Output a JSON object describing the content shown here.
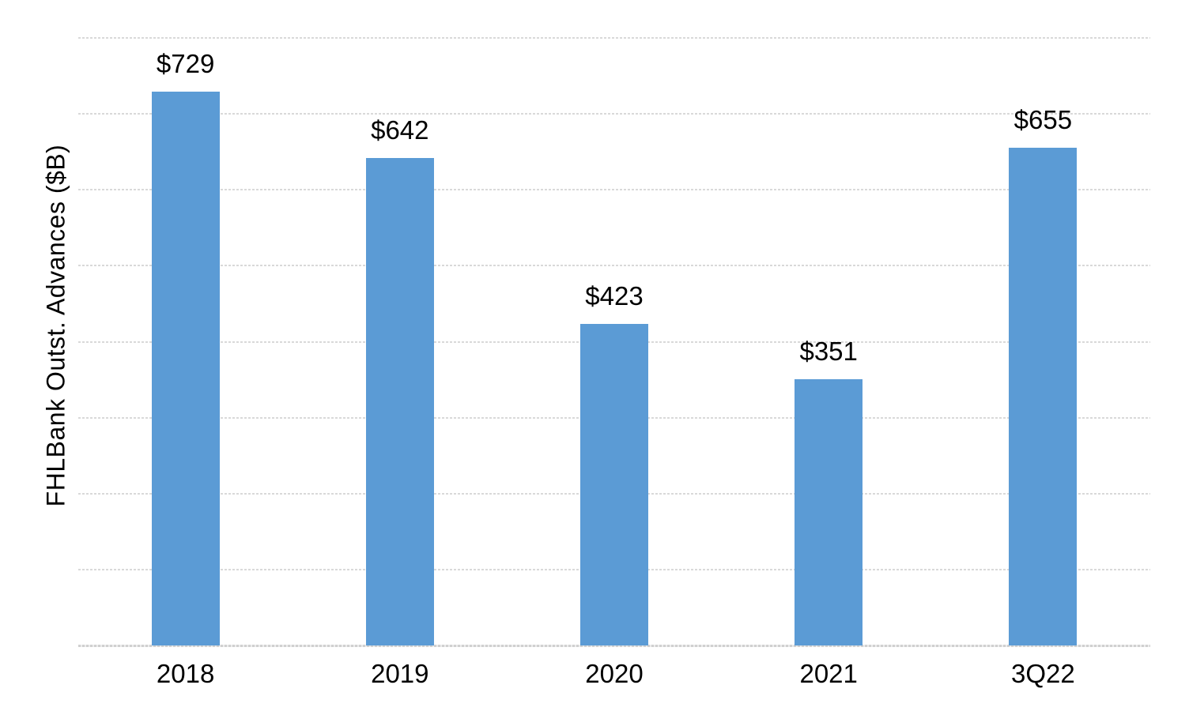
{
  "chart_data": {
    "type": "bar",
    "title": "",
    "xlabel": "",
    "ylabel": "FHLBank Outst. Advances ($B)",
    "categories": [
      "2018",
      "2019",
      "2020",
      "2021",
      "3Q22"
    ],
    "values": [
      729,
      642,
      423,
      351,
      655
    ],
    "value_labels": [
      "$729",
      "$642",
      "$423",
      "$351",
      "$655"
    ],
    "ylim": [
      0,
      800
    ],
    "gridline_step": 100,
    "grid": true,
    "legend": "none",
    "colors": {
      "bar": "#5B9BD5",
      "gridline": "#D9D9D9",
      "axis_line": "#D0D0D0",
      "text": "#000000",
      "background": "#FFFFFF"
    }
  }
}
